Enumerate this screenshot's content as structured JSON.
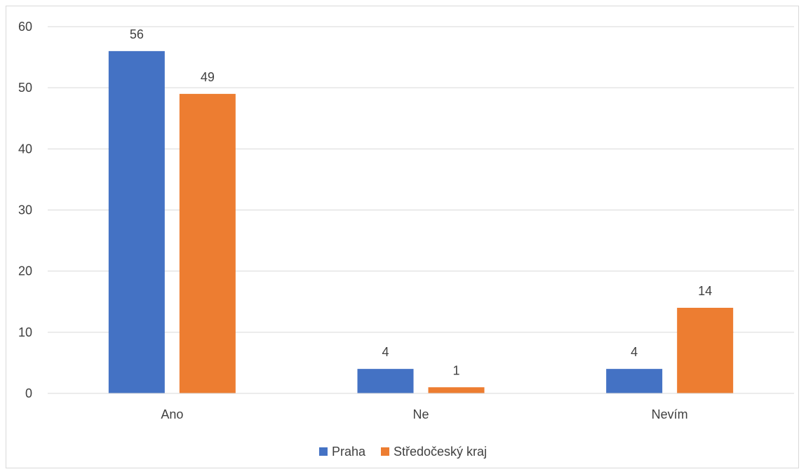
{
  "chart_data": {
    "type": "bar",
    "categories": [
      "Ano",
      "Ne",
      "Nevím"
    ],
    "series": [
      {
        "name": "Praha",
        "values": [
          56,
          4,
          4
        ],
        "color": "#4472C4"
      },
      {
        "name": "Středočeský kraj",
        "values": [
          49,
          1,
          14
        ],
        "color": "#ED7D31"
      }
    ],
    "ylim": [
      0,
      60
    ],
    "yticks": [
      0,
      10,
      20,
      30,
      40,
      50,
      60
    ],
    "grid": true,
    "data_labels": true,
    "legend_position": "bottom"
  }
}
